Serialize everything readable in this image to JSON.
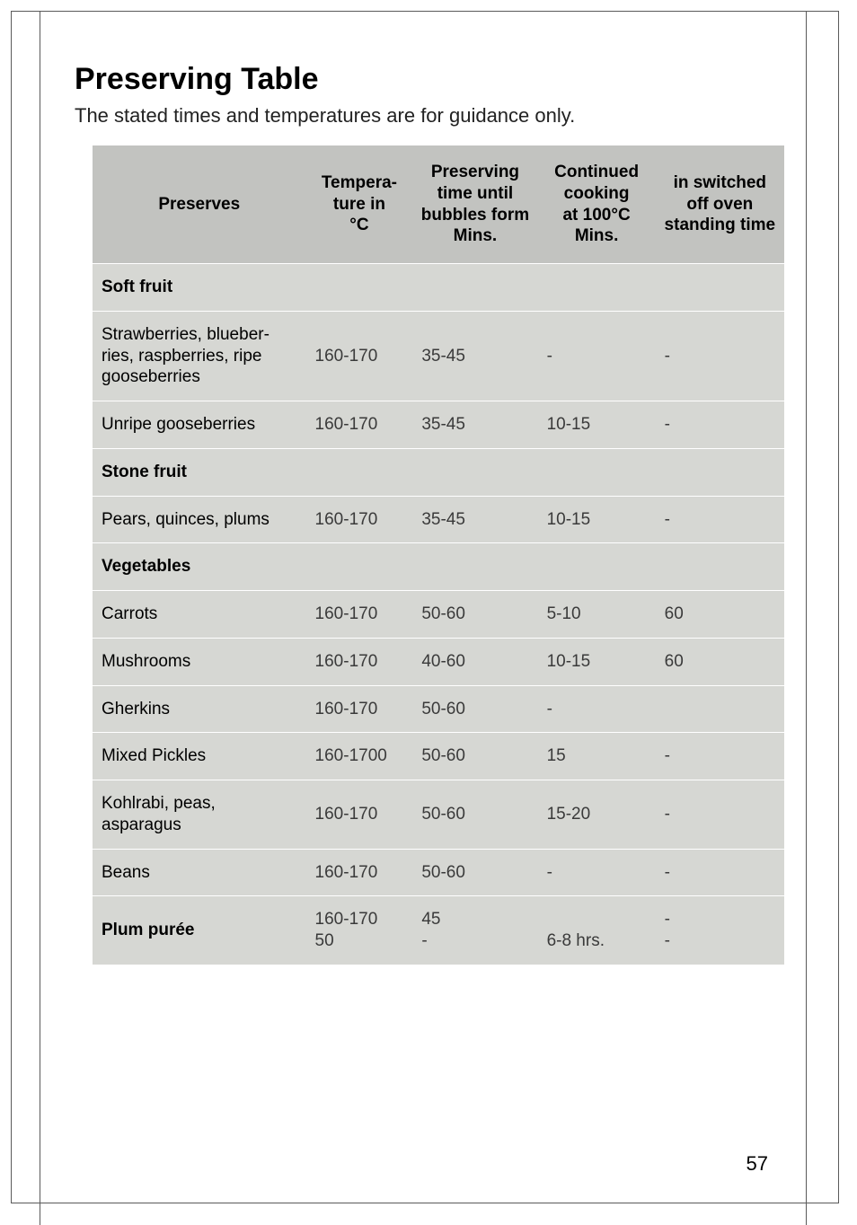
{
  "page_number": "57",
  "title": "Preserving Table",
  "intro": "The stated times and temperatures are for guidance only.",
  "colors": {
    "header_bg": "#c2c3c0",
    "body_bg_alt": "#d6d7d3",
    "body_bg": "#d6d7d3",
    "text": "#000000",
    "text_muted": "#3a3a3a"
  },
  "table": {
    "columns": [
      {
        "label": "Preserves"
      },
      {
        "label": "Tempera-\nture in\n°C"
      },
      {
        "label": "Preserving\ntime until\nbubbles form\nMins."
      },
      {
        "label": "Continued\ncooking\nat 100°C\nMins."
      },
      {
        "label": "in switched\noff oven\nstanding time"
      }
    ],
    "rows": [
      {
        "cells": [
          "Soft fruit",
          "",
          "",
          "",
          ""
        ],
        "section": true
      },
      {
        "cells": [
          "Strawberries, blueber-\nries, raspberries, ripe\ngooseberries",
          "160-170",
          "35-45",
          "-",
          "-"
        ]
      },
      {
        "cells": [
          "Unripe gooseberries",
          "160-170",
          "35-45",
          "10-15",
          "-"
        ]
      },
      {
        "cells": [
          "Stone fruit",
          "",
          "",
          "",
          ""
        ],
        "section": true
      },
      {
        "cells": [
          "Pears, quinces, plums",
          "160-170",
          "35-45",
          "10-15",
          "-"
        ]
      },
      {
        "cells": [
          "Vegetables",
          "",
          "",
          "",
          ""
        ],
        "section": true
      },
      {
        "cells": [
          "Carrots",
          "160-170",
          "50-60",
          "5-10",
          "60"
        ]
      },
      {
        "cells": [
          "Mushrooms",
          "160-170",
          "40-60",
          "10-15",
          "60"
        ]
      },
      {
        "cells": [
          "Gherkins",
          "160-170",
          "50-60",
          "-",
          ""
        ]
      },
      {
        "cells": [
          "Mixed Pickles",
          "160-1700",
          "50-60",
          "15",
          "-"
        ]
      },
      {
        "cells": [
          "Kohlrabi, peas, asparagus",
          "160-170",
          "50-60",
          "15-20",
          "-"
        ]
      },
      {
        "cells": [
          "Beans",
          "160-170",
          "50-60",
          "-",
          "-"
        ]
      },
      {
        "cells": [
          "Plum purée",
          "160-170\n50",
          "45\n-",
          "\n6-8 hrs.",
          "-\n-"
        ],
        "section": true
      }
    ]
  }
}
